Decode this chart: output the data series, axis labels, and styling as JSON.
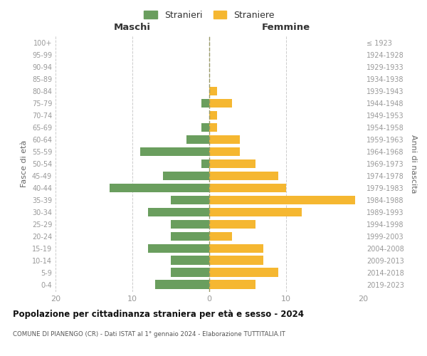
{
  "age_groups": [
    "0-4",
    "5-9",
    "10-14",
    "15-19",
    "20-24",
    "25-29",
    "30-34",
    "35-39",
    "40-44",
    "45-49",
    "50-54",
    "55-59",
    "60-64",
    "65-69",
    "70-74",
    "75-79",
    "80-84",
    "85-89",
    "90-94",
    "95-99",
    "100+"
  ],
  "birth_years": [
    "2019-2023",
    "2014-2018",
    "2009-2013",
    "2004-2008",
    "1999-2003",
    "1994-1998",
    "1989-1993",
    "1984-1988",
    "1979-1983",
    "1974-1978",
    "1969-1973",
    "1964-1968",
    "1959-1963",
    "1954-1958",
    "1949-1953",
    "1944-1948",
    "1939-1943",
    "1934-1938",
    "1929-1933",
    "1924-1928",
    "≤ 1923"
  ],
  "maschi": [
    7,
    5,
    5,
    8,
    5,
    5,
    8,
    5,
    13,
    6,
    1,
    9,
    3,
    1,
    0,
    1,
    0,
    0,
    0,
    0,
    0
  ],
  "femmine": [
    6,
    9,
    7,
    7,
    3,
    6,
    12,
    19,
    10,
    9,
    6,
    4,
    4,
    1,
    1,
    3,
    1,
    0,
    0,
    0,
    0
  ],
  "color_maschi": "#6a9e5e",
  "color_femmine": "#f5b731",
  "title": "Popolazione per cittadinanza straniera per età e sesso - 2024",
  "subtitle": "COMUNE DI PIANENGO (CR) - Dati ISTAT al 1° gennaio 2024 - Elaborazione TUTTITALIA.IT",
  "xlabel_left": "Maschi",
  "xlabel_right": "Femmine",
  "ylabel_left": "Fasce di età",
  "ylabel_right": "Anni di nascita",
  "legend_maschi": "Stranieri",
  "legend_femmine": "Straniere",
  "xlim": 20,
  "background_color": "#ffffff",
  "grid_color": "#cccccc"
}
